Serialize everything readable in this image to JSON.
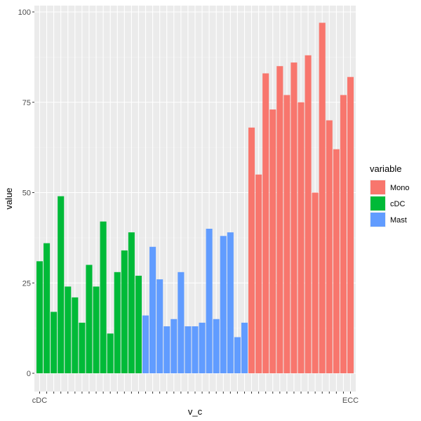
{
  "chart_data": {
    "type": "bar",
    "xlabel": "v_c",
    "ylabel": "value",
    "ylim": [
      0,
      100
    ],
    "y_ticks": [
      0,
      25,
      50,
      75,
      100
    ],
    "grid": true,
    "legend": {
      "title": "variable",
      "position": "right",
      "entries": [
        "Mono",
        "cDC",
        "Mast"
      ]
    },
    "colors": {
      "Mono": "#F8766D",
      "cDC": "#00BA38",
      "Mast": "#619CFF"
    },
    "x_tick_labels": {
      "first": "cDC",
      "last": "ECC"
    },
    "series": [
      {
        "name": "cDC",
        "values": [
          31,
          36,
          17,
          49,
          24,
          21,
          14,
          30,
          24,
          42,
          11,
          28,
          34,
          39,
          27
        ]
      },
      {
        "name": "Mast",
        "values": [
          16,
          35,
          26,
          13,
          15,
          28,
          13,
          13,
          14,
          40,
          15,
          38,
          39,
          10,
          14
        ]
      },
      {
        "name": "Mono",
        "values": [
          68,
          55,
          83,
          73,
          85,
          77,
          86,
          75,
          88,
          50,
          97,
          70,
          62,
          77,
          82
        ]
      }
    ]
  }
}
